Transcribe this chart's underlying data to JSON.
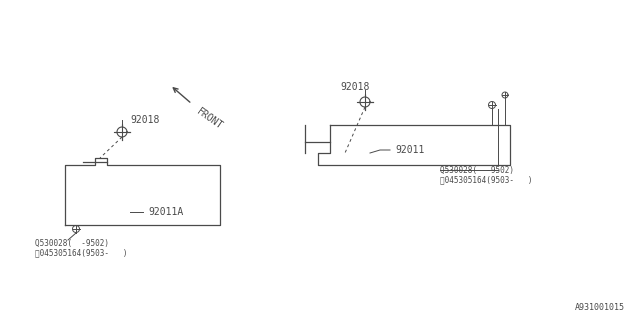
{
  "bg_color": "#ffffff",
  "line_color": "#4a4a4a",
  "text_color": "#4a4a4a",
  "fig_width": 6.4,
  "fig_height": 3.2,
  "dpi": 100,
  "bottom_right_label": "A931001015",
  "front_label": "FRONT",
  "label_92018": "92018",
  "label_92011": "92011",
  "label_92011A": "92011A",
  "pn_line1": "Q530028(  -9502)",
  "pn_line2": "Ⓢ045305164(9503-   )"
}
